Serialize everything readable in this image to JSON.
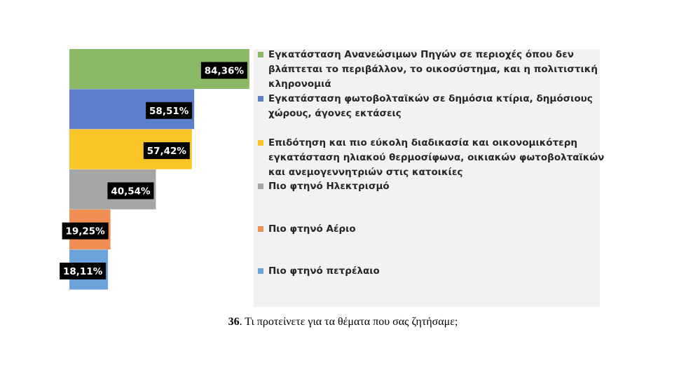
{
  "chart_data": {
    "type": "bar",
    "orientation": "horizontal",
    "xlim": [
      0,
      100
    ],
    "legend_position": "right",
    "grid": false,
    "categories": [
      "Εγκατάσταση  Ανανεώσιμων Πηγών σε περιοχές όπου δεν βλάπτεται το περιβάλλον, το οικοσύστημα, και η πολιτιστική κληρονομιά",
      "Εγκατάσταση  φωτοβολταϊκών σε δημόσια κτίρια, δημόσιους χώρους, άγονες εκτάσεις",
      "Επιδότηση και πιο εύκολη διαδικασία και οικονομικότερη εγκατάσταση ηλιακού θερμοσίφωνα, οικιακών φωτοβολταϊκών και ανεμογεννητριών στις κατοικίες",
      "Πιο φτηνό Ηλεκτρισμό",
      "Πιο φτηνό Αέριο",
      "Πιο φτηνό πετρέλαιο"
    ],
    "values": [
      84.36,
      58.51,
      57.42,
      40.54,
      19.25,
      18.11
    ],
    "value_labels": [
      "84,36%",
      "58,51%",
      "57,42%",
      "40,54%",
      "19,25%",
      "18,11%"
    ],
    "colors": [
      "#8bb965",
      "#5b7fcb",
      "#fcc527",
      "#a6a6a6",
      "#ef8d53",
      "#6da3dc"
    ],
    "legend_lines": [
      [
        "Εγκατάσταση  Ανανεώσιμων Πηγών σε περιοχές όπου δεν",
        "βλάπτεται το περιβάλλον, το οικοσύστημα, και η πολιτιστική",
        "κληρονομιά"
      ],
      [
        "Εγκατάσταση  φωτοβολταϊκών σε δημόσια κτίρια, δημόσιους",
        "χώρους, άγονες εκτάσεις"
      ],
      [
        "Επιδότηση και πιο εύκολη διαδικασία και οικονομικότερη",
        "εγκατάσταση ηλιακού θερμοσίφωνα, οικιακών φωτοβολταϊκών",
        "και ανεμογεννητριών στις κατοικίες"
      ],
      [
        "Πιο φτηνό Ηλεκτρισμό"
      ],
      [
        "Πιο φτηνό Αέριο"
      ],
      [
        "Πιο φτηνό πετρέλαιο"
      ]
    ]
  },
  "caption": {
    "number": "36",
    "text": ". Τι προτείνετε για τα θέματα που σας ζητήσαμε;"
  }
}
